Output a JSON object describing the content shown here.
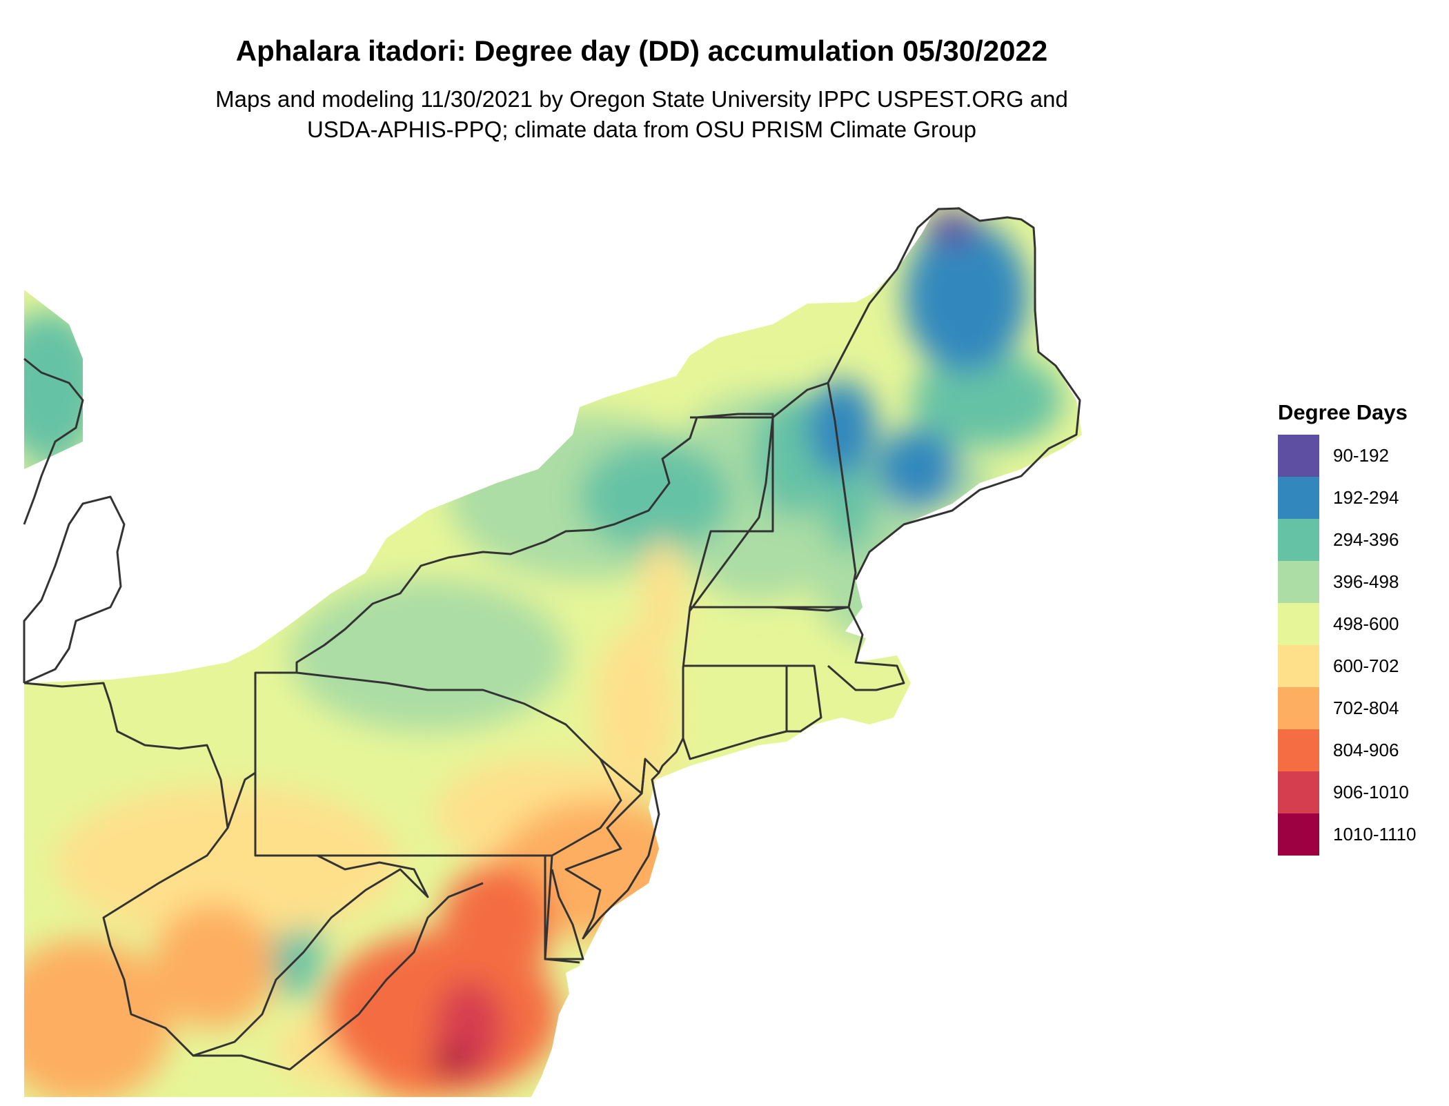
{
  "title": "Aphalara itadori: Degree day (DD) accumulation 05/30/2022",
  "subtitle_line1": "Maps and modeling 11/30/2021 by Oregon State University IPPC USPEST.ORG and",
  "subtitle_line2": "USDA-APHIS-PPQ; climate data from OSU PRISM Climate Group",
  "legend": {
    "title": "Degree Days",
    "items": [
      {
        "label": "90-192",
        "color": "#5e4fa2"
      },
      {
        "label": "192-294",
        "color": "#3288bd"
      },
      {
        "label": "294-396",
        "color": "#66c2a5"
      },
      {
        "label": "396-498",
        "color": "#abdda4"
      },
      {
        "label": "498-600",
        "color": "#e6f598"
      },
      {
        "label": "600-702",
        "color": "#fee08b"
      },
      {
        "label": "702-804",
        "color": "#fdae61"
      },
      {
        "label": "804-906",
        "color": "#f46d43"
      },
      {
        "label": "906-1010",
        "color": "#d53e4f"
      },
      {
        "label": "1010-1110",
        "color": "#9e0142"
      }
    ]
  },
  "boundary_color": "#333333"
}
